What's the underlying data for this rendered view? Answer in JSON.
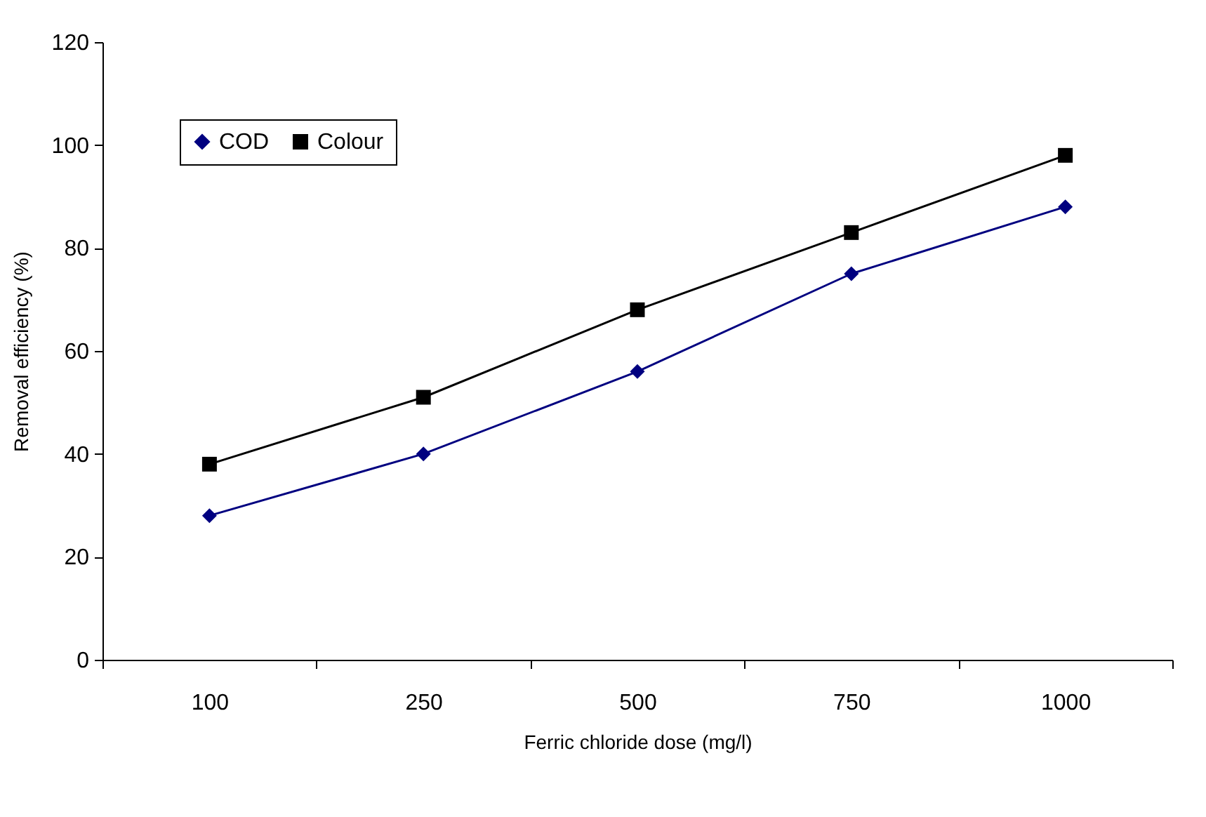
{
  "chart_data": {
    "type": "line",
    "xlabel": "Ferric chloride dose (mg/l)",
    "ylabel": "Removal efficiency (%)",
    "categories": [
      "100",
      "250",
      "500",
      "750",
      "1000"
    ],
    "series": [
      {
        "name": "COD",
        "color": "#000080",
        "marker": "diamond",
        "values": [
          28,
          40,
          56,
          75,
          88
        ]
      },
      {
        "name": "Colour",
        "color": "#000000",
        "marker": "square",
        "values": [
          38,
          51,
          68,
          83,
          98
        ]
      }
    ],
    "ylim": [
      0,
      120
    ],
    "yticks": [
      0,
      20,
      40,
      60,
      80,
      100,
      120
    ],
    "legend": "top left",
    "grid": false,
    "line_style": "solid"
  }
}
